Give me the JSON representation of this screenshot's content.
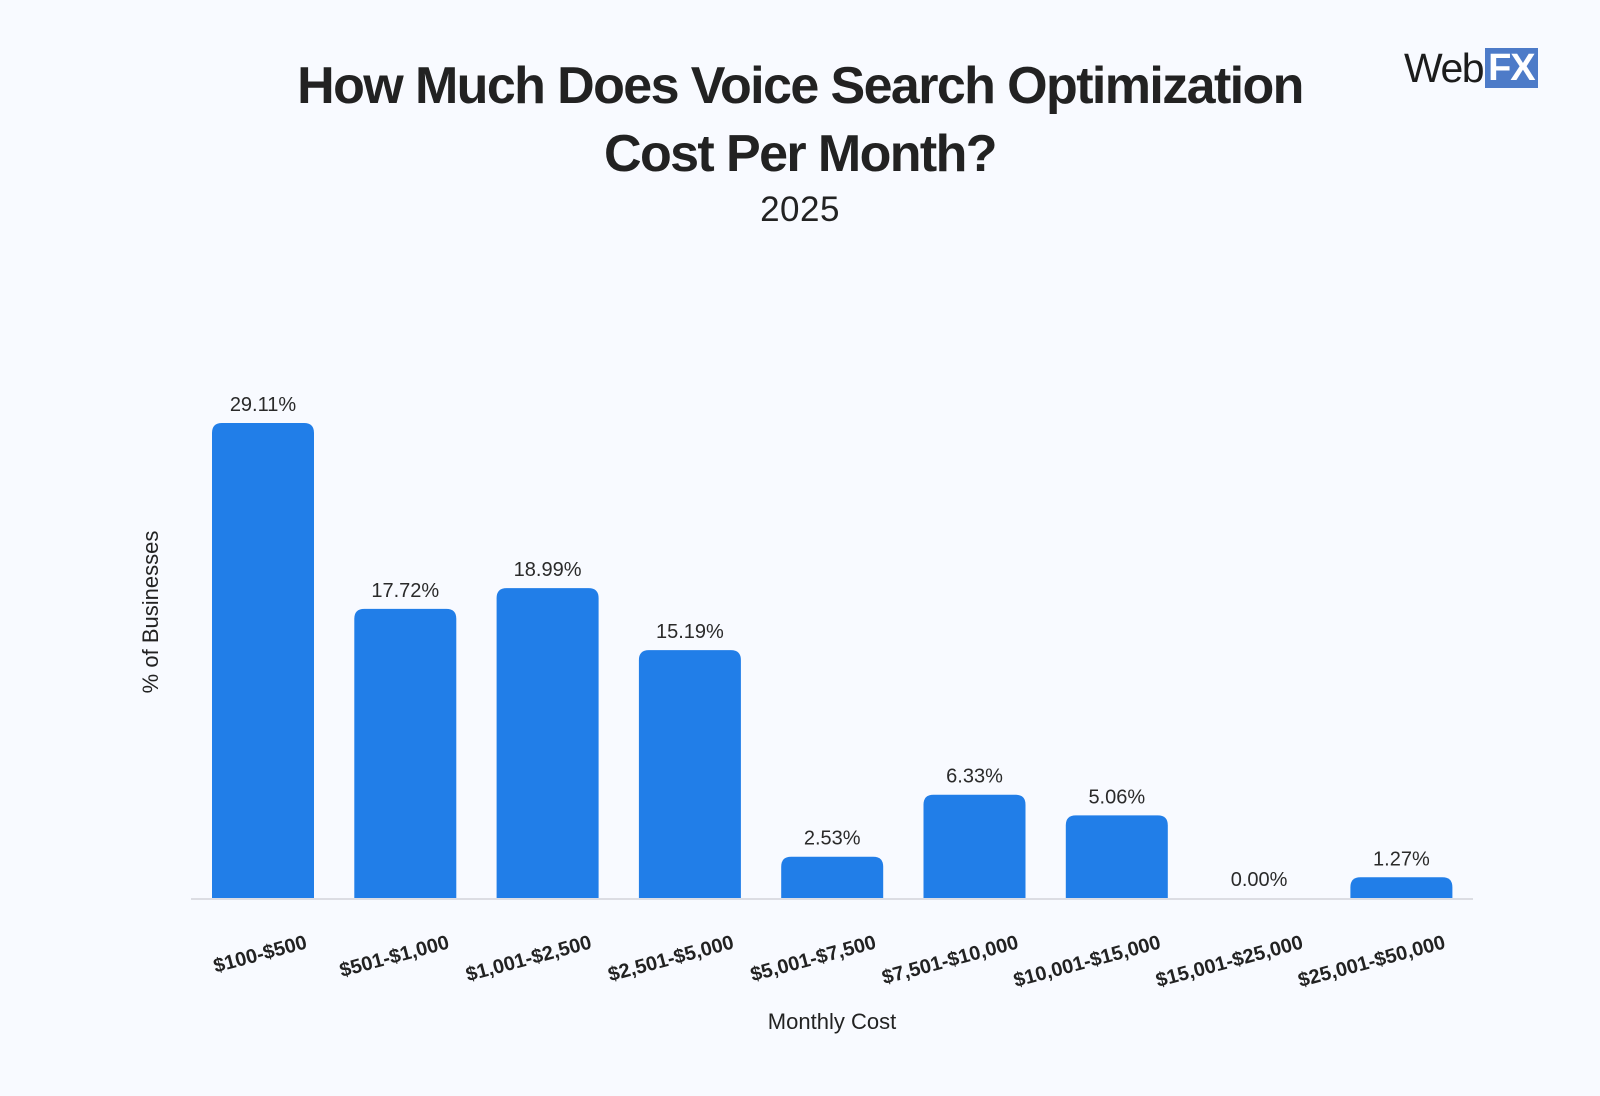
{
  "logo": {
    "web": "Web",
    "fx": "FX"
  },
  "chart_data": {
    "type": "bar",
    "title": "How Much Does Voice Search Optimization Cost Per Month?",
    "title_lines": [
      "How Much Does Voice Search Optimization",
      "Cost Per Month?"
    ],
    "subtitle": "2025",
    "xlabel": "Monthly Cost",
    "ylabel": "% of Businesses",
    "categories": [
      "$100-$500",
      "$501-$1,000",
      "$1,001-$2,500",
      "$2,501-$5,000",
      "$5,001-$7,500",
      "$7,501-$10,000",
      "$10,001-$15,000",
      "$15,001-$25,000",
      "$25,001-$50,000"
    ],
    "values": [
      29.11,
      17.72,
      18.99,
      15.19,
      2.53,
      6.33,
      5.06,
      0.0,
      1.27
    ],
    "value_labels": [
      "29.11%",
      "17.72%",
      "18.99%",
      "15.19%",
      "2.53%",
      "6.33%",
      "5.06%",
      "0.00%",
      "1.27%"
    ],
    "ylim": [
      0,
      29.11
    ],
    "grid": false,
    "legend": "none",
    "bar_color": "#217ee8",
    "tick_label_rotation_deg": -15
  }
}
